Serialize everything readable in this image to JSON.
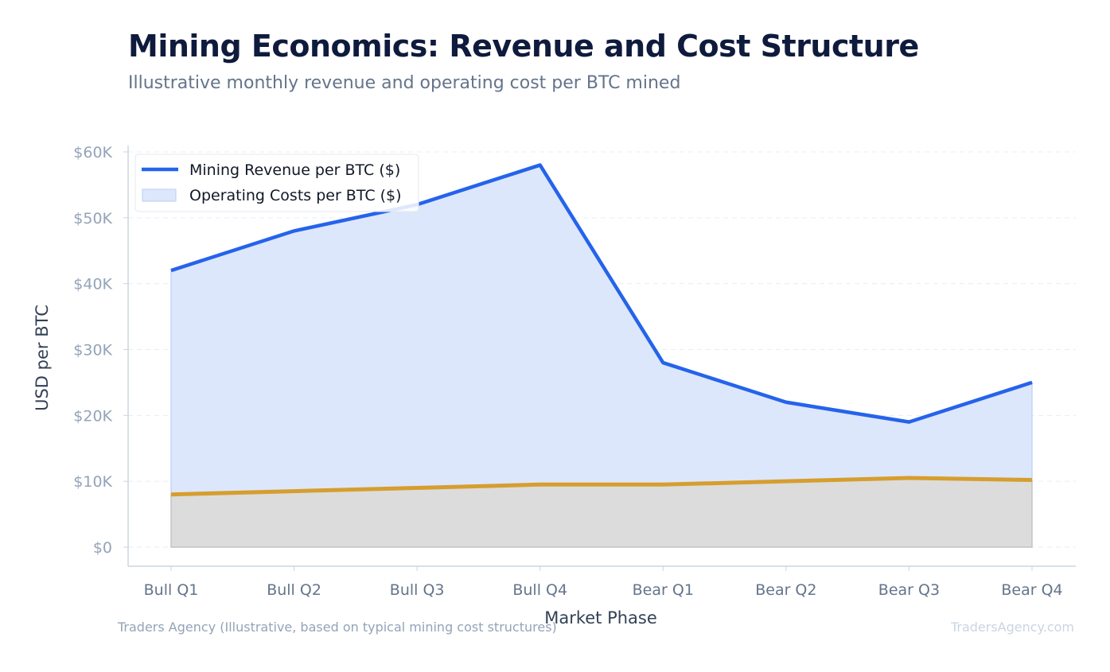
{
  "header": {
    "title": "Mining Economics: Revenue and Cost Structure",
    "subtitle": "Illustrative monthly revenue and operating cost per BTC mined"
  },
  "footer": {
    "source": "Traders Agency (Illustrative, based on typical mining cost structures)",
    "brand": "TradersAgency.com"
  },
  "chart_data": {
    "type": "area",
    "categories": [
      "Bull Q1",
      "Bull Q2",
      "Bull Q3",
      "Bull Q4",
      "Bear Q1",
      "Bear Q2",
      "Bear Q3",
      "Bear Q4"
    ],
    "series": [
      {
        "name": "Mining Revenue per BTC ($)",
        "values": [
          42000,
          48000,
          52000,
          58000,
          28000,
          22000,
          19000,
          25000
        ],
        "color": "#2563eb",
        "fill": "#dde7fb"
      },
      {
        "name": "Operating Costs per BTC ($)",
        "values": [
          8000,
          8500,
          9000,
          9500,
          9500,
          10000,
          10500,
          10200
        ],
        "color": "#d69e2e",
        "fill": "#dcdcdc"
      }
    ],
    "xlabel": "Market Phase",
    "ylabel": "USD per BTC",
    "ylim": [
      0,
      60000
    ],
    "yticks": [
      0,
      10000,
      20000,
      30000,
      40000,
      50000,
      60000
    ],
    "ytick_labels": [
      "$0",
      "$10K",
      "$20K",
      "$30K",
      "$40K",
      "$50K",
      "$60K"
    ],
    "grid": true,
    "legend_position": "top-left"
  }
}
